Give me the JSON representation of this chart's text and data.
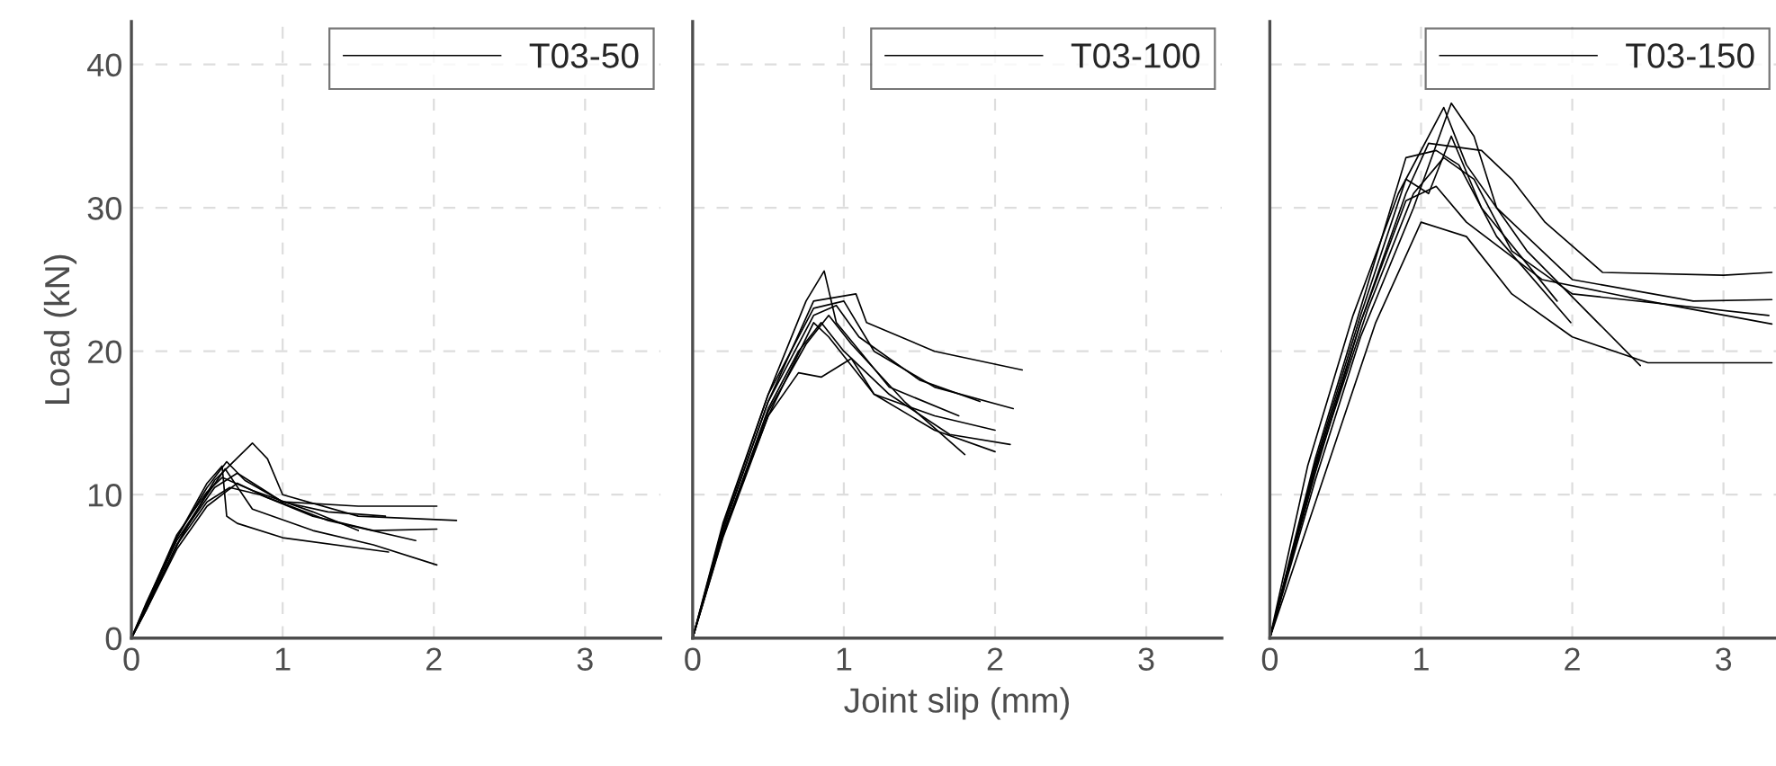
{
  "chart_data": [
    {
      "type": "line",
      "ylabel": "Load (kN)",
      "xlim": [
        0,
        3.5
      ],
      "ylim": [
        0,
        43
      ],
      "xticks": [
        0,
        1,
        2,
        3
      ],
      "yticks": [
        0,
        10,
        20,
        30,
        40
      ],
      "grid": true,
      "legend": "top right",
      "line_style": "solid",
      "series": [
        {
          "name": "T03-50",
          "color": "#000000",
          "x": [
            0,
            0.1,
            0.3,
            0.5,
            0.63,
            0.75,
            1.0,
            1.5,
            2.02
          ],
          "values": [
            0,
            2.5,
            7,
            10.5,
            12.3,
            11,
            9.5,
            9.2,
            9.2
          ]
        },
        {
          "color": "#000000",
          "x": [
            0,
            0.1,
            0.3,
            0.55,
            0.8,
            0.9,
            1.0,
            1.5,
            2.15
          ],
          "values": [
            0,
            2,
            6.5,
            11,
            13.6,
            12.5,
            10,
            8.5,
            8.2
          ]
        },
        {
          "color": "#000000",
          "x": [
            0,
            0.1,
            0.3,
            0.5,
            0.62,
            0.8,
            1.2,
            1.6,
            2.02
          ],
          "values": [
            0,
            2.2,
            6.8,
            10,
            11.8,
            9,
            7.5,
            6.5,
            5.1
          ]
        },
        {
          "color": "#000000",
          "x": [
            0,
            0.12,
            0.3,
            0.5,
            0.65,
            0.85,
            1.2,
            1.6,
            2.02
          ],
          "values": [
            0,
            2.5,
            6.5,
            9.5,
            10.5,
            10,
            8.5,
            7.5,
            7.6
          ]
        },
        {
          "color": "#000000",
          "x": [
            0,
            0.1,
            0.3,
            0.5,
            0.6,
            0.63,
            0.7,
            1.0,
            1.7
          ],
          "values": [
            0,
            2.3,
            7,
            10.8,
            12,
            8.5,
            8,
            7,
            6
          ]
        },
        {
          "color": "#000000",
          "x": [
            0,
            0.1,
            0.3,
            0.5,
            0.7,
            0.9,
            1.3,
            1.88
          ],
          "values": [
            0,
            2,
            6.2,
            9.2,
            10.8,
            9.8,
            8.2,
            6.8
          ]
        },
        {
          "color": "#000000",
          "x": [
            0,
            0.1,
            0.3,
            0.5,
            0.6,
            0.8,
            1.2,
            1.5
          ],
          "values": [
            0,
            2.4,
            7.2,
            10.2,
            11.2,
            10.3,
            8.8,
            7.5
          ]
        },
        {
          "color": "#000000",
          "x": [
            0,
            0.1,
            0.35,
            0.55,
            0.7,
            1.0,
            1.3,
            1.68
          ],
          "values": [
            0,
            2.1,
            7.5,
            10.5,
            11.5,
            9.5,
            8.8,
            8.5
          ]
        }
      ]
    },
    {
      "type": "line",
      "xlabel": "Joint slip (mm)",
      "xlim": [
        0,
        3.5
      ],
      "ylim": [
        0,
        43
      ],
      "xticks": [
        0,
        1,
        2,
        3
      ],
      "yticks": [
        0,
        10,
        20,
        30,
        40
      ],
      "tick_labels": "x",
      "grid": true,
      "legend": "top right",
      "line_style": "solid",
      "series": [
        {
          "name": "T03-100",
          "color": "#000000",
          "x": [
            0,
            0.2,
            0.5,
            0.75,
            0.87,
            0.95,
            1.3,
            1.76
          ],
          "values": [
            0,
            8,
            17,
            23.5,
            25.6,
            22,
            17.5,
            15.5
          ]
        },
        {
          "color": "#000000",
          "x": [
            0,
            0.2,
            0.5,
            0.8,
            1.08,
            1.15,
            1.6,
            2.18
          ],
          "values": [
            0,
            7.5,
            16.5,
            23.5,
            24,
            22,
            20,
            18.7
          ]
        },
        {
          "color": "#000000",
          "x": [
            0,
            0.2,
            0.5,
            0.8,
            0.9,
            1.2,
            1.6,
            2.0
          ],
          "values": [
            0,
            7,
            15.5,
            22,
            21,
            17,
            14.5,
            13
          ]
        },
        {
          "color": "#000000",
          "x": [
            0,
            0.2,
            0.5,
            0.7,
            0.85,
            1.0,
            1.3,
            1.7,
            2.1
          ],
          "values": [
            0,
            7.2,
            16,
            20,
            22,
            20,
            17,
            14.2,
            13.5
          ]
        },
        {
          "color": "#000000",
          "x": [
            0,
            0.2,
            0.5,
            0.8,
            1.0,
            1.2,
            1.6,
            2.12
          ],
          "values": [
            0,
            7.8,
            17,
            23,
            23.5,
            20,
            17.5,
            16
          ]
        },
        {
          "color": "#000000",
          "x": [
            0,
            0.2,
            0.5,
            0.7,
            0.85,
            1.05,
            1.2,
            1.6,
            2.0
          ],
          "values": [
            0,
            7.3,
            15.5,
            18.5,
            18.2,
            19.5,
            17,
            15.5,
            14.5
          ]
        },
        {
          "color": "#000000",
          "x": [
            0,
            0.2,
            0.5,
            0.8,
            0.95,
            1.1,
            1.5,
            1.9
          ],
          "values": [
            0,
            7.6,
            16.5,
            22.5,
            23.2,
            21,
            18,
            16.5
          ]
        },
        {
          "color": "#000000",
          "x": [
            0,
            0.2,
            0.5,
            0.75,
            0.9,
            1.05,
            1.4,
            1.8
          ],
          "values": [
            0,
            7.1,
            15.8,
            20.5,
            22.5,
            20.5,
            16.5,
            12.8
          ]
        }
      ]
    },
    {
      "type": "line",
      "xlim": [
        0,
        3.35
      ],
      "ylim": [
        0,
        43
      ],
      "xticks": [
        0,
        1,
        2,
        3
      ],
      "yticks": [
        0,
        10,
        20,
        30,
        40
      ],
      "tick_labels": "x",
      "grid": true,
      "legend": "top right",
      "line_style": "solid",
      "series": [
        {
          "name": "T03-150",
          "color": "#000000",
          "x": [
            0,
            0.3,
            0.6,
            0.9,
            1.05,
            1.4,
            1.6,
            1.82,
            2.2,
            3.0,
            3.32
          ],
          "values": [
            0,
            12,
            22,
            31,
            34.5,
            34,
            32,
            29,
            25.5,
            25.3,
            25.5
          ]
        },
        {
          "color": "#000000",
          "x": [
            0,
            0.3,
            0.6,
            0.95,
            1.2,
            1.35,
            1.5,
            2.0,
            2.8,
            3.32
          ],
          "values": [
            0,
            11,
            21,
            30,
            37.3,
            35,
            30,
            25,
            23.5,
            23.6
          ]
        },
        {
          "color": "#000000",
          "x": [
            0,
            0.3,
            0.6,
            0.9,
            1.1,
            1.3,
            1.8,
            2.5,
            3.32
          ],
          "values": [
            0,
            11.5,
            22,
            30.5,
            31.5,
            29,
            25,
            23.5,
            21.9
          ]
        },
        {
          "color": "#000000",
          "x": [
            0,
            0.35,
            0.7,
            1.0,
            1.3,
            1.6,
            2.0,
            2.5,
            3.32
          ],
          "values": [
            0,
            11,
            22,
            29,
            28,
            24,
            21,
            19.2,
            19.2
          ]
        },
        {
          "color": "#000000",
          "x": [
            0,
            0.3,
            0.6,
            0.9,
            1.1,
            1.25,
            1.5,
            1.99
          ],
          "values": [
            0,
            12.5,
            23,
            33.5,
            34,
            33,
            28,
            22
          ]
        },
        {
          "color": "#000000",
          "x": [
            0,
            0.25,
            0.55,
            0.85,
            1.15,
            1.3,
            1.7,
            2.45
          ],
          "values": [
            0,
            12,
            22.5,
            31,
            37,
            33,
            27,
            19
          ]
        },
        {
          "color": "#000000",
          "x": [
            0,
            0.3,
            0.65,
            0.95,
            1.15,
            1.35,
            1.6,
            2.0,
            3.3
          ],
          "values": [
            0,
            11.8,
            23,
            31,
            33.5,
            32,
            27,
            24,
            22.5
          ]
        },
        {
          "color": "#000000",
          "x": [
            0,
            0.3,
            0.6,
            0.9,
            1.05,
            1.2,
            1.4,
            1.9
          ],
          "values": [
            0,
            12.2,
            22.5,
            32,
            31,
            35,
            30,
            23.5
          ]
        }
      ]
    }
  ]
}
